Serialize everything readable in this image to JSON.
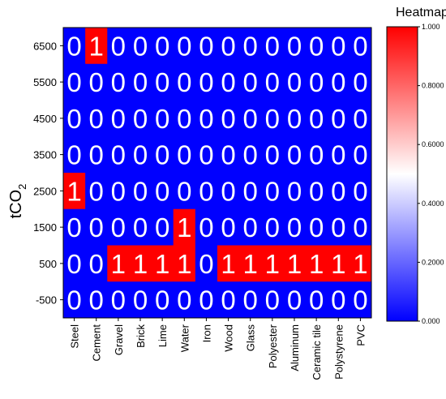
{
  "chart_data": {
    "type": "heatmap",
    "ylabel_main": "tCO",
    "ylabel_sub": "2",
    "x_categories": [
      "Steel",
      "Cement",
      "Gravel",
      "Brick",
      "Lime",
      "Water",
      "Iron",
      "Wood",
      "Glass",
      "Polyester",
      "Aluminum",
      "Ceramic tile",
      "Polystyrene",
      "PVC"
    ],
    "y_categories": [
      "6500",
      "5500",
      "4500",
      "3500",
      "2500",
      "1500",
      "500",
      "-500"
    ],
    "values": [
      [
        0,
        1,
        0,
        0,
        0,
        0,
        0,
        0,
        0,
        0,
        0,
        0,
        0,
        0
      ],
      [
        0,
        0,
        0,
        0,
        0,
        0,
        0,
        0,
        0,
        0,
        0,
        0,
        0,
        0
      ],
      [
        0,
        0,
        0,
        0,
        0,
        0,
        0,
        0,
        0,
        0,
        0,
        0,
        0,
        0
      ],
      [
        0,
        0,
        0,
        0,
        0,
        0,
        0,
        0,
        0,
        0,
        0,
        0,
        0,
        0
      ],
      [
        1,
        0,
        0,
        0,
        0,
        0,
        0,
        0,
        0,
        0,
        0,
        0,
        0,
        0
      ],
      [
        0,
        0,
        0,
        0,
        0,
        1,
        0,
        0,
        0,
        0,
        0,
        0,
        0,
        0
      ],
      [
        0,
        0,
        1,
        1,
        1,
        1,
        0,
        1,
        1,
        1,
        1,
        1,
        1,
        1
      ],
      [
        0,
        0,
        0,
        0,
        0,
        0,
        0,
        0,
        0,
        0,
        0,
        0,
        0,
        0
      ]
    ],
    "colorbar": {
      "title": "Heatmap",
      "ticks": [
        "1.000",
        "0.8000",
        "0.6000",
        "0.4000",
        "0.2000",
        "0.000"
      ],
      "tick_values": [
        1.0,
        0.8,
        0.6,
        0.4,
        0.2,
        0.0
      ],
      "range": [
        0,
        1
      ],
      "colors": {
        "low": "#0000ff",
        "mid": "#ffffff",
        "high": "#ff0000"
      }
    }
  }
}
